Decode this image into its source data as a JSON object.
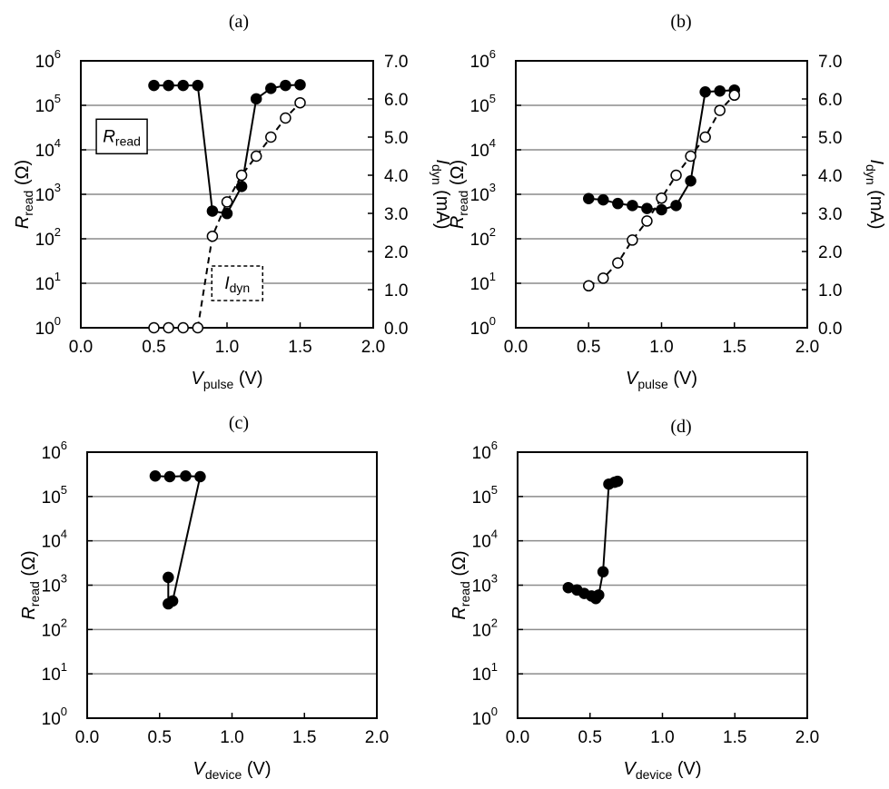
{
  "chart_data": [
    {
      "id": "a",
      "panel_label": "(a)",
      "type": "line",
      "xlabel": {
        "main": "V",
        "sub": "pulse",
        "unit": " (V)"
      },
      "ylabel": {
        "main": "R",
        "sub": "read",
        "unit": " (Ω)"
      },
      "y2label": {
        "main": "I",
        "sub": "dyn",
        "unit": " (mA)"
      },
      "xlim": [
        0,
        2.0
      ],
      "xticks": [
        "0.0",
        "0.5",
        "1.0",
        "1.5",
        "2.0"
      ],
      "ylim_log10": [
        0,
        6
      ],
      "yticks": [
        {
          "base": "10",
          "exp": "0"
        },
        {
          "base": "10",
          "exp": "1"
        },
        {
          "base": "10",
          "exp": "2"
        },
        {
          "base": "10",
          "exp": "3"
        },
        {
          "base": "10",
          "exp": "4"
        },
        {
          "base": "10",
          "exp": "5"
        },
        {
          "base": "10",
          "exp": "6"
        }
      ],
      "y2lim": [
        0,
        7.0
      ],
      "y2ticks": [
        "0.0",
        "1.0",
        "2.0",
        "3.0",
        "4.0",
        "5.0",
        "6.0",
        "7.0"
      ],
      "grid": "horizontal",
      "boxes": [
        {
          "main": "R",
          "sub": "read",
          "style": "solid",
          "x": 0.28,
          "y_log10": 4.3
        },
        {
          "main": "I",
          "sub": "dyn",
          "style": "dashed",
          "x": 1.07,
          "y_log10": 1.0
        }
      ],
      "series": [
        {
          "name": "Rread",
          "axis": "left",
          "marker": "filled",
          "line": "solid",
          "x": [
            0.5,
            0.6,
            0.7,
            0.8,
            0.9,
            1.0,
            1.1,
            1.2,
            1.3,
            1.4,
            1.5
          ],
          "y": [
            280000,
            280000,
            280000,
            280000,
            420,
            370,
            1500,
            140000,
            240000,
            280000,
            290000
          ]
        },
        {
          "name": "Idyn",
          "axis": "right",
          "marker": "open",
          "line": "dashed",
          "x": [
            0.5,
            0.6,
            0.7,
            0.8,
            0.9,
            1.0,
            1.1,
            1.2,
            1.3,
            1.4,
            1.5
          ],
          "y": [
            0.0,
            0.0,
            0.0,
            0.0,
            2.4,
            3.3,
            4.0,
            4.5,
            5.0,
            5.5,
            5.9
          ]
        }
      ]
    },
    {
      "id": "b",
      "panel_label": "(b)",
      "type": "line",
      "xlabel": {
        "main": "V",
        "sub": "pulse",
        "unit": " (V)"
      },
      "ylabel": {
        "main": "R",
        "sub": "read",
        "unit": " (Ω)"
      },
      "y2label": {
        "main": "I",
        "sub": "dyn",
        "unit": " (mA)"
      },
      "xlim": [
        0,
        2.0
      ],
      "xticks": [
        "0.0",
        "0.5",
        "1.0",
        "1.5",
        "2.0"
      ],
      "ylim_log10": [
        0,
        6
      ],
      "yticks": [
        {
          "base": "10",
          "exp": "0"
        },
        {
          "base": "10",
          "exp": "1"
        },
        {
          "base": "10",
          "exp": "2"
        },
        {
          "base": "10",
          "exp": "3"
        },
        {
          "base": "10",
          "exp": "4"
        },
        {
          "base": "10",
          "exp": "5"
        },
        {
          "base": "10",
          "exp": "6"
        }
      ],
      "y2lim": [
        0,
        7.0
      ],
      "y2ticks": [
        "0.0",
        "1.0",
        "2.0",
        "3.0",
        "4.0",
        "5.0",
        "6.0",
        "7.0"
      ],
      "grid": "horizontal",
      "boxes": [],
      "series": [
        {
          "name": "Rread",
          "axis": "left",
          "marker": "filled",
          "line": "solid",
          "x": [
            0.5,
            0.6,
            0.7,
            0.8,
            0.9,
            1.0,
            1.1,
            1.2,
            1.3,
            1.4,
            1.5
          ],
          "y": [
            800,
            750,
            620,
            560,
            480,
            450,
            560,
            2000,
            200000,
            210000,
            220000
          ]
        },
        {
          "name": "Idyn",
          "axis": "right",
          "marker": "open",
          "line": "dashed",
          "x": [
            0.5,
            0.6,
            0.7,
            0.8,
            0.9,
            1.0,
            1.1,
            1.2,
            1.3,
            1.4,
            1.5
          ],
          "y": [
            1.1,
            1.3,
            1.7,
            2.3,
            2.8,
            3.4,
            4.0,
            4.5,
            5.0,
            5.7,
            6.1
          ]
        }
      ]
    },
    {
      "id": "c",
      "panel_label": "(c)",
      "type": "line",
      "xlabel": {
        "main": "V",
        "sub": "device",
        "unit": " (V)"
      },
      "ylabel": {
        "main": "R",
        "sub": "read",
        "unit": " (Ω)"
      },
      "xlim": [
        0,
        2.0
      ],
      "xticks": [
        "0.0",
        "0.5",
        "1.0",
        "1.5",
        "2.0"
      ],
      "ylim_log10": [
        0,
        6
      ],
      "yticks": [
        {
          "base": "10",
          "exp": "0"
        },
        {
          "base": "10",
          "exp": "1"
        },
        {
          "base": "10",
          "exp": "2"
        },
        {
          "base": "10",
          "exp": "3"
        },
        {
          "base": "10",
          "exp": "4"
        },
        {
          "base": "10",
          "exp": "5"
        },
        {
          "base": "10",
          "exp": "6"
        }
      ],
      "grid": "horizontal",
      "boxes": [],
      "series": [
        {
          "name": "Rread",
          "axis": "left",
          "marker": "filled",
          "line": "solid",
          "x": [
            0.47,
            0.57,
            0.68,
            0.78,
            0.59,
            0.56,
            0.56
          ],
          "y": [
            290000,
            280000,
            290000,
            280000,
            440,
            380,
            1500
          ]
        }
      ]
    },
    {
      "id": "d",
      "panel_label": "(d)",
      "type": "line",
      "xlabel": {
        "main": "V",
        "sub": "device",
        "unit": " (V)"
      },
      "ylabel": {
        "main": "R",
        "sub": "read",
        "unit": " (Ω)"
      },
      "xlim": [
        0,
        2.0
      ],
      "xticks": [
        "0.0",
        "0.5",
        "1.0",
        "1.5",
        "2.0"
      ],
      "ylim_log10": [
        0,
        6
      ],
      "yticks": [
        {
          "base": "10",
          "exp": "0"
        },
        {
          "base": "10",
          "exp": "1"
        },
        {
          "base": "10",
          "exp": "2"
        },
        {
          "base": "10",
          "exp": "3"
        },
        {
          "base": "10",
          "exp": "4"
        },
        {
          "base": "10",
          "exp": "5"
        },
        {
          "base": "10",
          "exp": "6"
        }
      ],
      "grid": "horizontal",
      "boxes": [],
      "series": [
        {
          "name": "Rread",
          "axis": "left",
          "marker": "filled",
          "line": "solid",
          "x": [
            0.35,
            0.41,
            0.46,
            0.51,
            0.54,
            0.56,
            0.59,
            0.63,
            0.67,
            0.69
          ],
          "y": [
            880,
            780,
            650,
            570,
            500,
            600,
            2000,
            190000,
            210000,
            220000
          ]
        }
      ]
    }
  ]
}
